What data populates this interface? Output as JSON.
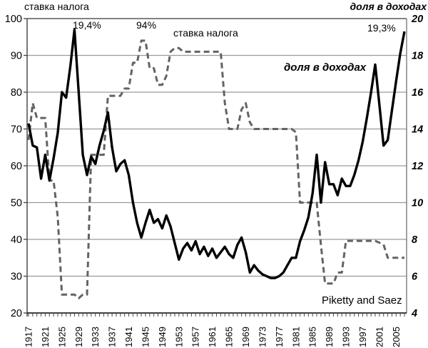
{
  "titles": {
    "left": "ставка налога",
    "right": "доля в доходах"
  },
  "annotations": {
    "peak_1928": "19,4%",
    "rate_94": "94%",
    "tax_series_label": "ставка налога",
    "share_series_label": "доля в доходах",
    "end_2007": "19,3%",
    "source": "Piketty and Saez"
  },
  "chart_data": {
    "type": "line",
    "title": "",
    "xlabel": "",
    "grid": true,
    "legend_position": "in-plot text labels",
    "x_years": [
      1917,
      1918,
      1919,
      1920,
      1921,
      1922,
      1923,
      1924,
      1925,
      1926,
      1927,
      1928,
      1929,
      1930,
      1931,
      1932,
      1933,
      1934,
      1935,
      1936,
      1937,
      1938,
      1939,
      1940,
      1941,
      1942,
      1943,
      1944,
      1945,
      1946,
      1947,
      1948,
      1949,
      1950,
      1951,
      1952,
      1953,
      1954,
      1955,
      1956,
      1957,
      1958,
      1959,
      1960,
      1961,
      1962,
      1963,
      1964,
      1965,
      1966,
      1967,
      1968,
      1969,
      1970,
      1971,
      1972,
      1973,
      1974,
      1975,
      1976,
      1977,
      1978,
      1979,
      1980,
      1981,
      1982,
      1983,
      1984,
      1985,
      1986,
      1987,
      1988,
      1989,
      1990,
      1991,
      1992,
      1993,
      1994,
      1995,
      1996,
      1997,
      1998,
      1999,
      2000,
      2001,
      2002,
      2003,
      2004,
      2005,
      2006,
      2007
    ],
    "x_axis": {
      "tick_step_years": 1,
      "label_years": [
        1917,
        1921,
        1925,
        1929,
        1933,
        1937,
        1941,
        1945,
        1949,
        1953,
        1957,
        1961,
        1965,
        1969,
        1973,
        1977,
        1981,
        1985,
        1989,
        1993,
        1997,
        2001,
        2005
      ],
      "label_rotation_deg": -90
    },
    "left_axis": {
      "title": "ставка налога",
      "min": 20,
      "max": 100,
      "ticks": [
        20,
        30,
        40,
        50,
        60,
        70,
        80,
        90,
        100
      ]
    },
    "right_axis": {
      "title": "доля в доходах",
      "min": 4,
      "max": 20,
      "ticks": [
        4,
        6,
        8,
        10,
        12,
        14,
        16,
        18,
        20
      ],
      "bold_italic": true
    },
    "series": [
      {
        "id": "tax-rate",
        "name": "ставка налога",
        "axis": "left",
        "line_style": "dashed",
        "color": "#636363",
        "values": [
          67,
          77,
          73,
          73,
          73,
          56,
          56,
          46,
          25,
          25,
          25,
          25,
          24,
          25,
          25,
          63,
          63,
          63,
          63,
          79,
          79,
          79,
          79,
          81,
          81,
          88,
          88,
          94,
          94,
          86.5,
          86.5,
          82,
          82,
          84.4,
          91,
          92,
          92,
          91,
          91,
          91,
          91,
          91,
          91,
          91,
          91,
          91,
          91,
          77,
          70,
          70,
          70,
          75.3,
          77,
          71.8,
          70,
          70,
          70,
          70,
          70,
          70,
          70,
          70,
          70,
          70,
          69.1,
          50,
          50,
          50,
          50,
          50,
          38.5,
          28,
          28,
          28,
          31,
          31,
          39.6,
          39.6,
          39.6,
          39.6,
          39.6,
          39.6,
          39.6,
          39.6,
          39.1,
          38.6,
          35,
          35,
          35,
          35,
          35
        ]
      },
      {
        "id": "income-share",
        "name": "доля в доходах",
        "axis": "right",
        "line_style": "solid",
        "color": "#000000",
        "values": [
          14.3,
          13.1,
          13.0,
          11.3,
          12.6,
          11.2,
          12.4,
          13.8,
          16.0,
          15.7,
          17.4,
          19.4,
          16.0,
          12.6,
          11.5,
          12.5,
          12.1,
          13.1,
          13.9,
          14.9,
          13.0,
          11.7,
          12.1,
          12.3,
          11.5,
          10.0,
          8.9,
          8.1,
          8.9,
          9.6,
          8.9,
          9.1,
          8.6,
          9.3,
          8.7,
          7.8,
          6.9,
          7.5,
          7.8,
          7.4,
          7.9,
          7.2,
          7.6,
          7.1,
          7.5,
          7.0,
          7.3,
          7.6,
          7.2,
          7.0,
          7.7,
          8.1,
          7.3,
          6.2,
          6.6,
          6.3,
          6.1,
          6.0,
          5.9,
          5.9,
          6.0,
          6.2,
          6.6,
          7.0,
          7.0,
          7.9,
          8.5,
          9.2,
          10.5,
          12.6,
          10.0,
          12.2,
          11.0,
          11.0,
          10.4,
          11.3,
          10.9,
          10.9,
          11.5,
          12.3,
          13.3,
          14.6,
          16.0,
          17.5,
          15.3,
          13.1,
          13.4,
          15.0,
          16.6,
          18.1,
          19.3
        ]
      }
    ],
    "annotations": [
      {
        "text": "19,4%",
        "series": "income-share",
        "year": 1928
      },
      {
        "text": "94%",
        "series": "tax-rate",
        "year": 1944
      },
      {
        "text": "19,3%",
        "series": "income-share",
        "year": 2007
      },
      {
        "text": "Piketty and Saez",
        "role": "source"
      }
    ],
    "colors": {
      "gridline": "#9a9a9a",
      "axis": "#404040",
      "dashed_series": "#636363",
      "solid_series": "#000000"
    }
  }
}
